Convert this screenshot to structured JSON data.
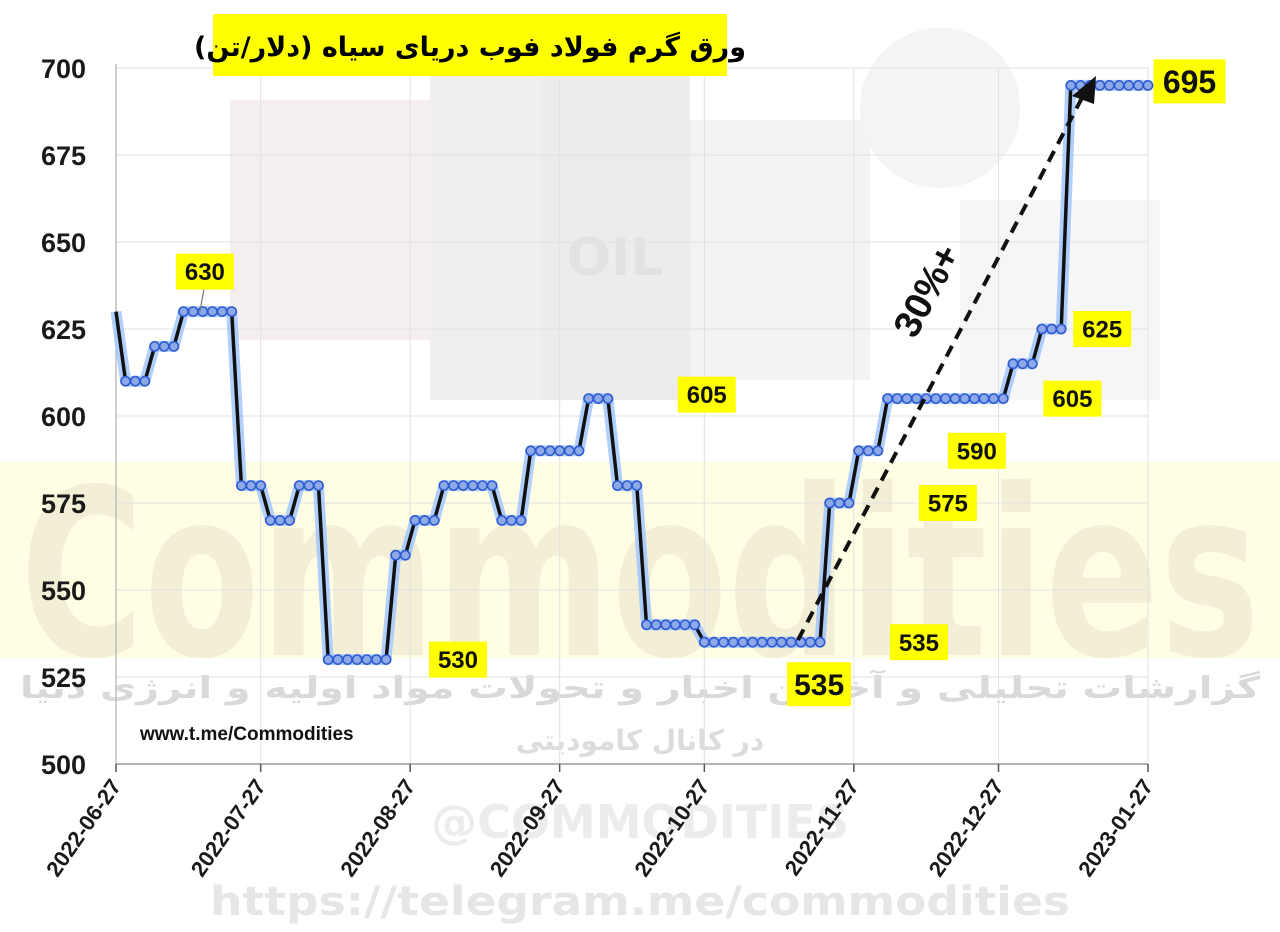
{
  "chart_data": {
    "type": "line",
    "title": "ورق گرم فولاد فوب دریای سیاه (دلار/تن)",
    "xlabel": "",
    "ylabel": "",
    "ylim": [
      500,
      700
    ],
    "yticks": [
      "500",
      "525",
      "550",
      "575",
      "600",
      "625",
      "650",
      "675",
      "700"
    ],
    "xticks": [
      "2022-06-27",
      "2022-07-27",
      "2022-08-27",
      "2022-09-27",
      "2022-10-27",
      "2022-11-27",
      "2022-12-27",
      "2023-01-27"
    ],
    "grid": true,
    "series": [
      {
        "x": [
          "2022-06-27",
          "2022-06-29",
          "2022-07-01",
          "2022-07-03",
          "2022-07-05",
          "2022-07-07",
          "2022-07-09",
          "2022-07-11",
          "2022-07-13",
          "2022-07-15",
          "2022-07-17",
          "2022-07-19",
          "2022-07-21",
          "2022-07-23",
          "2022-07-25",
          "2022-07-27",
          "2022-07-29",
          "2022-07-31",
          "2022-08-02",
          "2022-08-04",
          "2022-08-06",
          "2022-08-08",
          "2022-08-10",
          "2022-08-12",
          "2022-08-14",
          "2022-08-16",
          "2022-08-18",
          "2022-08-20",
          "2022-08-22",
          "2022-08-24",
          "2022-08-26",
          "2022-08-28",
          "2022-08-30",
          "2022-09-01",
          "2022-09-03",
          "2022-09-05",
          "2022-09-07",
          "2022-09-09",
          "2022-09-11",
          "2022-09-13",
          "2022-09-15",
          "2022-09-17",
          "2022-09-19",
          "2022-09-21",
          "2022-09-23",
          "2022-09-25",
          "2022-09-27",
          "2022-09-29",
          "2022-10-01",
          "2022-10-03",
          "2022-10-05",
          "2022-10-07",
          "2022-10-09",
          "2022-10-11",
          "2022-10-13",
          "2022-10-15",
          "2022-10-17",
          "2022-10-19",
          "2022-10-21",
          "2022-10-23",
          "2022-10-25",
          "2022-10-27",
          "2022-10-29",
          "2022-10-31",
          "2022-11-02",
          "2022-11-04",
          "2022-11-06",
          "2022-11-08",
          "2022-11-10",
          "2022-11-12",
          "2022-11-14",
          "2022-11-16",
          "2022-11-18",
          "2022-11-20",
          "2022-11-22",
          "2022-11-24",
          "2022-11-26",
          "2022-11-28",
          "2022-11-30",
          "2022-12-02",
          "2022-12-04",
          "2022-12-06",
          "2022-12-08",
          "2022-12-10",
          "2022-12-12",
          "2022-12-14",
          "2022-12-16",
          "2022-12-18",
          "2022-12-20",
          "2022-12-22",
          "2022-12-24",
          "2022-12-26",
          "2022-12-28",
          "2022-12-30",
          "2023-01-01",
          "2023-01-03",
          "2023-01-05",
          "2023-01-07",
          "2023-01-09",
          "2023-01-11",
          "2023-01-13",
          "2023-01-15",
          "2023-01-17",
          "2023-01-19",
          "2023-01-21",
          "2023-01-23",
          "2023-01-25",
          "2023-01-27"
        ],
        "values": [
          630,
          610,
          610,
          610,
          620,
          620,
          620,
          630,
          630,
          630,
          630,
          630,
          630,
          580,
          580,
          580,
          570,
          570,
          570,
          580,
          580,
          580,
          530,
          530,
          530,
          530,
          530,
          530,
          530,
          560,
          560,
          570,
          570,
          570,
          580,
          580,
          580,
          580,
          580,
          580,
          570,
          570,
          570,
          590,
          590,
          590,
          590,
          590,
          590,
          605,
          605,
          605,
          580,
          580,
          580,
          540,
          540,
          540,
          540,
          540,
          540,
          535,
          535,
          535,
          535,
          535,
          535,
          535,
          535,
          535,
          535,
          535,
          535,
          535,
          575,
          575,
          575,
          590,
          590,
          590,
          605,
          605,
          605,
          605,
          605,
          605,
          605,
          605,
          605,
          605,
          605,
          605,
          605,
          615,
          615,
          615,
          625,
          625,
          625,
          695,
          695,
          695,
          695,
          695,
          695,
          695,
          695,
          695
        ]
      }
    ],
    "annotations": [
      {
        "text": "630",
        "x": "2022-07-09",
        "y": 630
      },
      {
        "text": "530",
        "x": "2022-08-28",
        "y": 530
      },
      {
        "text": "605",
        "x": "2022-10-19",
        "y": 605
      },
      {
        "text": "535",
        "x": "2022-11-14",
        "y": 535
      },
      {
        "text": "535",
        "x": "2022-12-02",
        "y": 535
      },
      {
        "text": "575",
        "x": "2022-12-08",
        "y": 575
      },
      {
        "text": "590",
        "x": "2022-12-14",
        "y": 590
      },
      {
        "text": "605",
        "x": "2023-01-02",
        "y": 605
      },
      {
        "text": "625",
        "x": "2023-01-09",
        "y": 625
      },
      {
        "text": "695",
        "x": "2023-01-24",
        "y": 695
      }
    ],
    "trend_annotation": {
      "text": "30%+"
    }
  },
  "watermarks": {
    "big": "Commodities",
    "line1": "گزارشات تحلیلی و آخرین اخبار و تحولات مواد اولیه و انرژی دنیا",
    "line2": "در کانال کامودیتی",
    "handle": "@COMMODITIES",
    "url_bottom": "https://telegram.me/commodities",
    "oil": "OIL"
  },
  "site_label": "www.t.me/Commodities",
  "colors": {
    "line": "#111111",
    "marker_fill": "#8ea9e8",
    "marker_stroke": "#2f5bd0",
    "glow": "#9cc3ff",
    "label_bg": "#ffff00",
    "grid": "#e2e2e2"
  }
}
